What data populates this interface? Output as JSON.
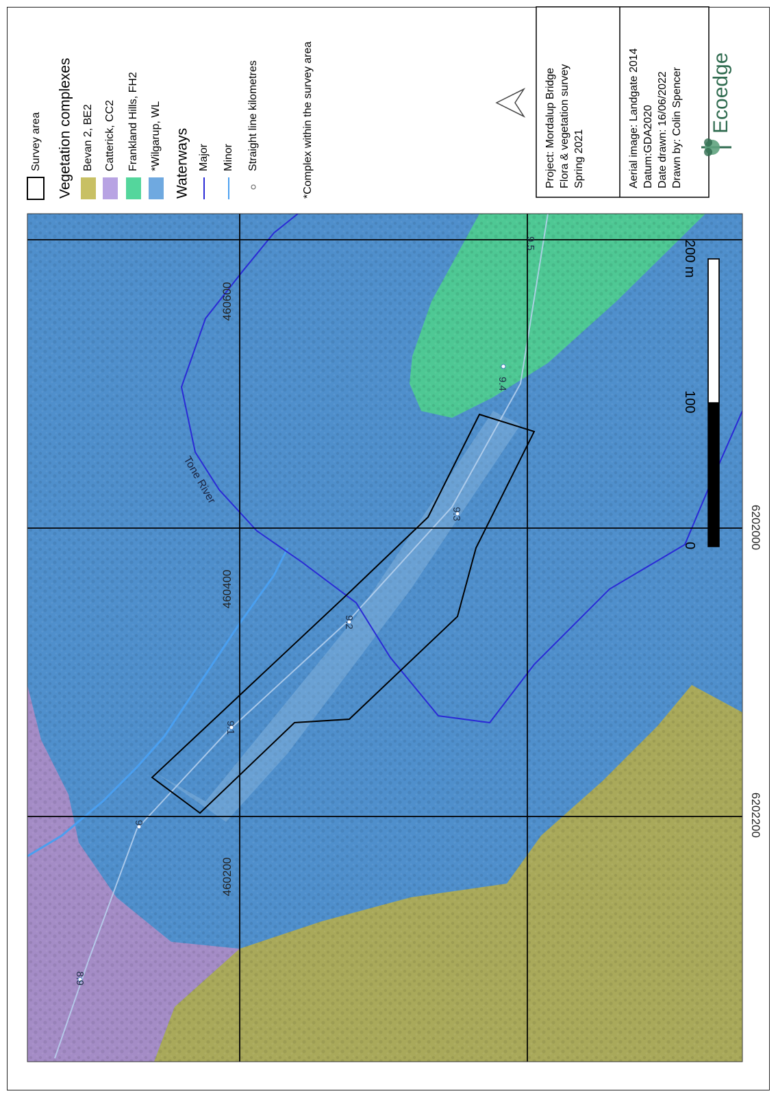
{
  "coords": {
    "easting": [
      "460200",
      "460400",
      "460600"
    ],
    "northing": [
      "6202200",
      "6202000"
    ]
  },
  "labels": {
    "river": "Tone River",
    "km": [
      "8.9",
      "9",
      "9.1",
      "9.2",
      "9.3",
      "9.4",
      "9.5"
    ]
  },
  "scale": {
    "ticks": [
      "0",
      "100",
      "200 m"
    ]
  },
  "legend": {
    "survey_area": "Survey area",
    "veg_title": "Vegetation complexes",
    "veg_items": [
      {
        "label": "Bevan 2, BE2",
        "color": "#c8c064"
      },
      {
        "label": "Catterick, CC2",
        "color": "#b8a3e3"
      },
      {
        "label": "Frankland Hills, FH2",
        "color": "#54d69c"
      },
      {
        "label": "*Wilgarup, WL",
        "color": "#6fa9e0"
      }
    ],
    "waterways_title": "Waterways",
    "major": "Major",
    "minor": "Minor",
    "km": "Straight line kilometres",
    "note": "*Complex within the survey area",
    "colors": {
      "major": "#2a2ad6",
      "minor": "#4a9ff0"
    }
  },
  "info": {
    "project": [
      "Project: Mordalup Bridge",
      "Flora & vegetation survey",
      "Spring 2021"
    ],
    "meta": [
      "Aerial image: Landgate 2014",
      "Datum:GDA2020",
      "Date drawn: 16/06/2022",
      "Drawn by: Colin Spencer"
    ]
  },
  "logo": "Ecoedge"
}
